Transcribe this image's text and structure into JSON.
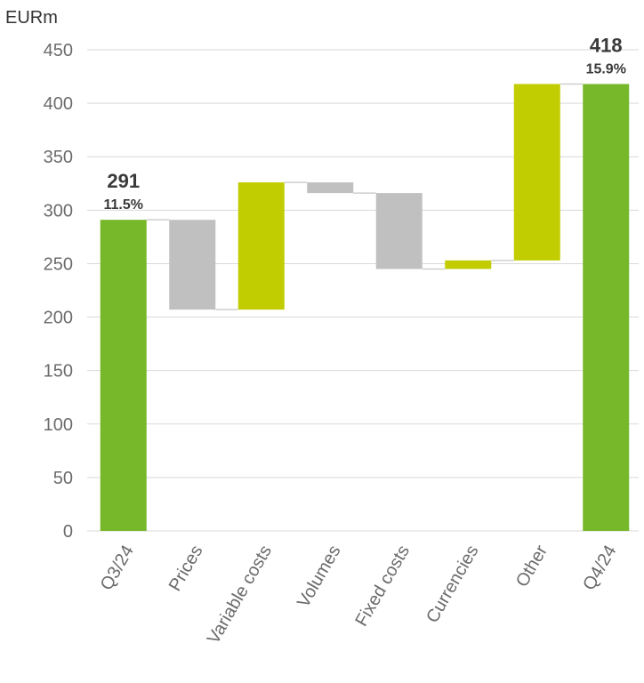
{
  "chart_data": {
    "type": "bar",
    "subtype": "waterfall",
    "ylabel": "EURm",
    "ylim": [
      0,
      450
    ],
    "yticks": [
      0,
      50,
      100,
      150,
      200,
      250,
      300,
      350,
      400,
      450
    ],
    "grid": true,
    "categories": [
      "Q3/24",
      "Prices",
      "Variable costs",
      "Volumes",
      "Fixed costs",
      "Currencies",
      "Other",
      "Q4/24"
    ],
    "bars": [
      {
        "category": "Q3/24",
        "kind": "total",
        "start": 0,
        "end": 291,
        "value_label": "291",
        "margin_label": "11.5%"
      },
      {
        "category": "Prices",
        "kind": "negative",
        "start": 291,
        "end": 207
      },
      {
        "category": "Variable costs",
        "kind": "positive",
        "start": 207,
        "end": 326
      },
      {
        "category": "Volumes",
        "kind": "negative",
        "start": 326,
        "end": 316
      },
      {
        "category": "Fixed costs",
        "kind": "negative",
        "start": 316,
        "end": 245
      },
      {
        "category": "Currencies",
        "kind": "positive",
        "start": 245,
        "end": 253
      },
      {
        "category": "Other",
        "kind": "positive",
        "start": 253,
        "end": 418
      },
      {
        "category": "Q4/24",
        "kind": "total",
        "start": 0,
        "end": 418,
        "value_label": "418",
        "margin_label": "15.9%"
      }
    ],
    "colors": {
      "total": "#76b82a",
      "positive": "#c1cd00",
      "negative": "#c0c0c0",
      "grid": "#d9d9d9",
      "connector": "#cfcfcf"
    }
  }
}
